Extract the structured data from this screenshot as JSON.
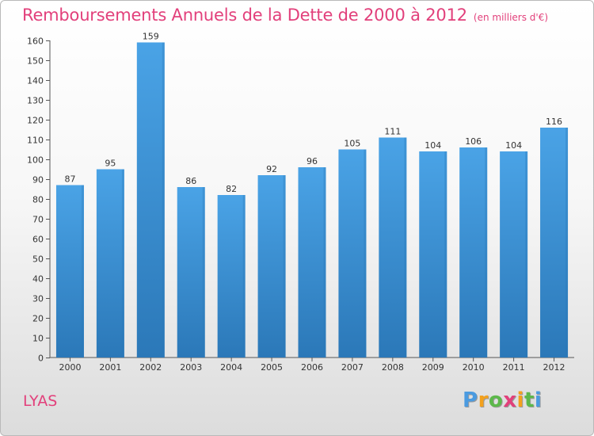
{
  "chart_data": {
    "type": "bar",
    "title": "Remboursements Annuels de la Dette de 2000 à 2012",
    "subtitle": "(en milliers d'€)",
    "categories": [
      "2000",
      "2001",
      "2002",
      "2003",
      "2004",
      "2005",
      "2006",
      "2007",
      "2008",
      "2009",
      "2010",
      "2011",
      "2012"
    ],
    "values": [
      87,
      95,
      159,
      86,
      82,
      92,
      96,
      105,
      111,
      104,
      106,
      104,
      116
    ],
    "ylim": [
      0,
      160
    ],
    "yticks": [
      0,
      10,
      20,
      30,
      40,
      50,
      60,
      70,
      80,
      90,
      100,
      110,
      120,
      130,
      140,
      150,
      160
    ],
    "grid": false,
    "bar_color": "#4aa3e6",
    "bar_color_dark": "#2b78b8"
  },
  "footer": {
    "commune": "LYAS",
    "logo_text": "Proxiti",
    "logo_colors": [
      "#4b9be0",
      "#f3a11d",
      "#5cb84a",
      "#e2407b",
      "#f3a11d",
      "#5cb84a",
      "#4b9be0"
    ]
  },
  "colors": {
    "accent": "#e2407b"
  }
}
